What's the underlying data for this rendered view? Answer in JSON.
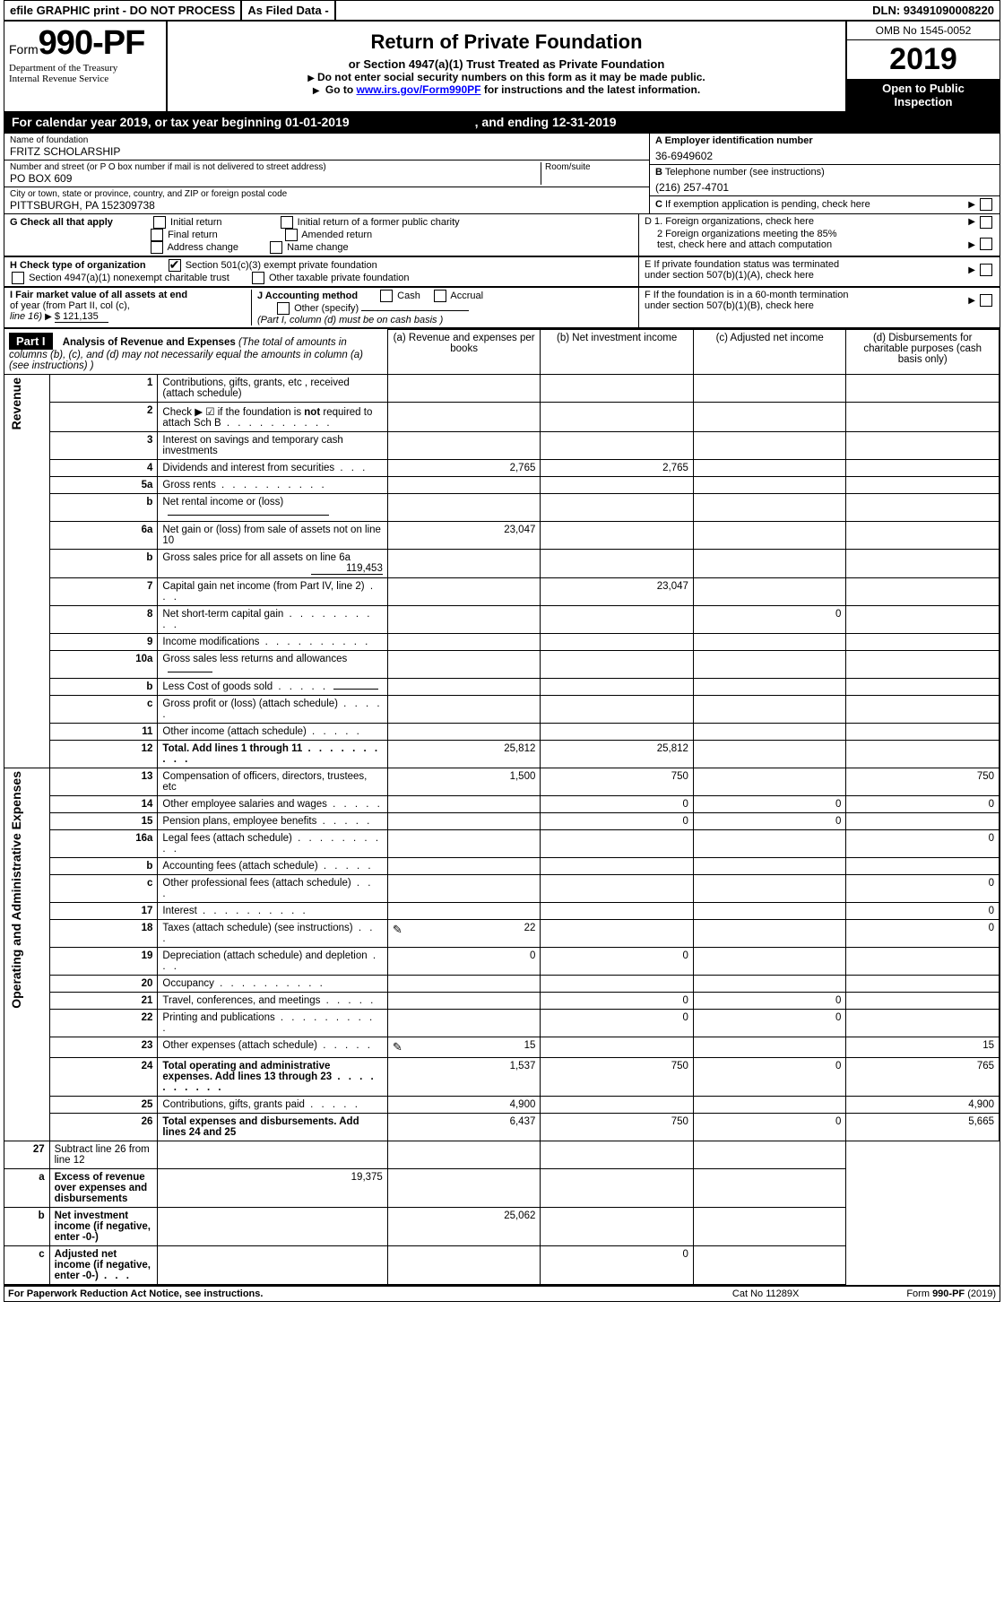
{
  "topbar": {
    "efile": "efile GRAPHIC print - DO NOT PROCESS",
    "asfiled": "As Filed Data -",
    "dln": "DLN: 93491090008220"
  },
  "header": {
    "formword": "Form",
    "formnum": "990-PF",
    "dept": "Department of the Treasury",
    "irs": "Internal Revenue Service",
    "title": "Return of Private Foundation",
    "subtitle": "or Section 4947(a)(1) Trust Treated as Private Foundation",
    "note1": "Do not enter social security numbers on this form as it may be made public.",
    "note2_a": "Go to ",
    "note2_link": "www.irs.gov/Form990PF",
    "note2_b": " for instructions and the latest information.",
    "omb": "OMB No 1545-0052",
    "year": "2019",
    "open": "Open to Public Inspection"
  },
  "calendar": {
    "a": "For calendar year 2019, or tax year beginning 01-01-2019",
    "b": ", and ending 12-31-2019"
  },
  "info": {
    "name_lbl": "Name of foundation",
    "name_val": "FRITZ SCHOLARSHIP",
    "addr_lbl": "Number and street (or P O  box number if mail is not delivered to street address)",
    "room_lbl": "Room/suite",
    "addr_val": "PO BOX 609",
    "city_lbl": "City or town, state or province, country, and ZIP or foreign postal code",
    "city_val": "PITTSBURGH, PA  152309738",
    "a_lbl": "A Employer identification number",
    "a_val": "36-6949602",
    "b_lbl": "B Telephone number (see instructions)",
    "b_val": "(216) 257-4701",
    "c_lbl": "C If exemption application is pending, check here"
  },
  "g": {
    "lbl": "G Check all that apply",
    "o1": "Initial return",
    "o2": "Initial return of a former public charity",
    "o3": "Final return",
    "o4": "Amended return",
    "o5": "Address change",
    "o6": "Name change"
  },
  "d": {
    "l1": "D 1. Foreign organizations, check here",
    "l2a": "2 Foreign organizations meeting the 85%",
    "l2b": "test, check here and attach computation",
    "e1": "E  If private foundation status was terminated",
    "e2": "under section 507(b)(1)(A), check here",
    "f1": "F  If the foundation is in a 60-month termination",
    "f2": "under section 507(b)(1)(B), check here"
  },
  "h": {
    "lbl": "H Check type of organization",
    "o1": "Section 501(c)(3) exempt private foundation",
    "o2": "Section 4947(a)(1) nonexempt charitable trust",
    "o3": "Other taxable private foundation"
  },
  "i": {
    "lbl1": "I Fair market value of all assets at end",
    "lbl2": "of year (from Part II, col  (c),",
    "lbl3": "line 16)",
    "val": "$  121,135"
  },
  "j": {
    "lbl": "J Accounting method",
    "o1": "Cash",
    "o2": "Accrual",
    "o3": "Other (specify)",
    "note": "(Part I, column (d) must be on cash basis )"
  },
  "part1": {
    "tag": "Part I",
    "title": "Analysis of Revenue and Expenses",
    "titlenote": " (The total of amounts in columns (b), (c), and (d) may not necessarily equal the amounts in column (a) (see instructions) )",
    "col_a": "(a)  Revenue and expenses per books",
    "col_b": "(b)  Net investment income",
    "col_c": "(c)  Adjusted net income",
    "col_d": "(d)  Disbursements for charitable purposes (cash basis only)"
  },
  "side_rev": "Revenue",
  "side_exp": "Operating and Administrative Expenses",
  "rows": [
    {
      "n": "1",
      "d": "Contributions, gifts, grants, etc , received (attach schedule)",
      "a": "",
      "b": "",
      "c": "",
      "dd": ""
    },
    {
      "n": "2",
      "d": "Check ▶ ☑ if the foundation is not required to attach Sch B",
      "a": "",
      "b": "",
      "c": "",
      "dd": "",
      "dots": true,
      "bold_not": true
    },
    {
      "n": "3",
      "d": "Interest on savings and temporary cash investments",
      "a": "",
      "b": "",
      "c": "",
      "dd": ""
    },
    {
      "n": "4",
      "d": "Dividends and interest from securities",
      "a": "2,765",
      "b": "2,765",
      "c": "",
      "dd": "",
      "dots3": true
    },
    {
      "n": "5a",
      "d": "Gross rents",
      "a": "",
      "b": "",
      "c": "",
      "dd": "",
      "dots": true
    },
    {
      "n": "b",
      "d": "Net rental income or (loss)",
      "a": "",
      "b": "",
      "c": "",
      "dd": "",
      "uline": true
    },
    {
      "n": "6a",
      "d": "Net gain or (loss) from sale of assets not on line 10",
      "a": "23,047",
      "b": "",
      "c": "",
      "dd": ""
    },
    {
      "n": "b",
      "d": "Gross sales price for all assets on line 6a",
      "a": "",
      "b": "",
      "c": "",
      "dd": "",
      "inline_val": "119,453"
    },
    {
      "n": "7",
      "d": "Capital gain net income (from Part IV, line 2)",
      "a": "",
      "b": "23,047",
      "c": "",
      "dd": "",
      "dots3": true
    },
    {
      "n": "8",
      "d": "Net short-term capital gain",
      "a": "",
      "b": "",
      "c": "0",
      "dd": "",
      "dots": true
    },
    {
      "n": "9",
      "d": "Income modifications",
      "a": "",
      "b": "",
      "c": "",
      "dd": "",
      "dots": true
    },
    {
      "n": "10a",
      "d": "Gross sales less returns and allowances",
      "a": "",
      "b": "",
      "c": "",
      "dd": "",
      "uline_sm": true
    },
    {
      "n": "b",
      "d": "Less  Cost of goods sold",
      "a": "",
      "b": "",
      "c": "",
      "dd": "",
      "dots5": true,
      "uline_sm": true
    },
    {
      "n": "c",
      "d": "Gross profit or (loss) (attach schedule)",
      "a": "",
      "b": "",
      "c": "",
      "dd": "",
      "dots5": true
    },
    {
      "n": "11",
      "d": "Other income (attach schedule)",
      "a": "",
      "b": "",
      "c": "",
      "dd": "",
      "dots5": true
    },
    {
      "n": "12",
      "d": "Total. Add lines 1 through 11",
      "a": "25,812",
      "b": "25,812",
      "c": "",
      "dd": "",
      "bold": true,
      "dots": true
    }
  ],
  "exprows": [
    {
      "n": "13",
      "d": "Compensation of officers, directors, trustees, etc",
      "a": "1,500",
      "b": "750",
      "c": "",
      "dd": "750"
    },
    {
      "n": "14",
      "d": "Other employee salaries and wages",
      "a": "",
      "b": "0",
      "c": "0",
      "dd": "0",
      "dots5": true
    },
    {
      "n": "15",
      "d": "Pension plans, employee benefits",
      "a": "",
      "b": "0",
      "c": "0",
      "dd": "",
      "dots5": true
    },
    {
      "n": "16a",
      "d": "Legal fees (attach schedule)",
      "a": "",
      "b": "",
      "c": "",
      "dd": "0",
      "dots": true
    },
    {
      "n": "b",
      "d": "Accounting fees (attach schedule)",
      "a": "",
      "b": "",
      "c": "",
      "dd": "",
      "dots5": true
    },
    {
      "n": "c",
      "d": "Other professional fees (attach schedule)",
      "a": "",
      "b": "",
      "c": "",
      "dd": "0",
      "dots3": true
    },
    {
      "n": "17",
      "d": "Interest",
      "a": "",
      "b": "",
      "c": "",
      "dd": "0",
      "dots": true
    },
    {
      "n": "18",
      "d": "Taxes (attach schedule) (see instructions)",
      "a": "22",
      "b": "",
      "c": "",
      "dd": "0",
      "dots3": true,
      "icon": true
    },
    {
      "n": "19",
      "d": "Depreciation (attach schedule) and depletion",
      "a": "0",
      "b": "0",
      "c": "",
      "dd": "",
      "dots3": true
    },
    {
      "n": "20",
      "d": "Occupancy",
      "a": "",
      "b": "",
      "c": "",
      "dd": "",
      "dots": true
    },
    {
      "n": "21",
      "d": "Travel, conferences, and meetings",
      "a": "",
      "b": "0",
      "c": "0",
      "dd": "",
      "dots5": true
    },
    {
      "n": "22",
      "d": "Printing and publications",
      "a": "",
      "b": "0",
      "c": "0",
      "dd": "",
      "dots": true
    },
    {
      "n": "23",
      "d": "Other expenses (attach schedule)",
      "a": "15",
      "b": "",
      "c": "",
      "dd": "15",
      "dots5": true,
      "icon": true
    },
    {
      "n": "24",
      "d": "Total operating and administrative expenses. Add lines 13 through 23",
      "a": "1,537",
      "b": "750",
      "c": "0",
      "dd": "765",
      "bold": true,
      "dots": true
    },
    {
      "n": "25",
      "d": "Contributions, gifts, grants paid",
      "a": "4,900",
      "b": "",
      "c": "",
      "dd": "4,900",
      "dots5": true
    },
    {
      "n": "26",
      "d": "Total expenses and disbursements. Add lines 24 and 25",
      "a": "6,437",
      "b": "750",
      "c": "0",
      "dd": "5,665",
      "bold": true
    }
  ],
  "sumrows": [
    {
      "n": "27",
      "d": "Subtract line 26 from line 12",
      "a": "",
      "b": "",
      "c": "",
      "dd": ""
    },
    {
      "n": "a",
      "d": "Excess of revenue over expenses and disbursements",
      "a": "19,375",
      "b": "",
      "c": "",
      "dd": "",
      "bold": true
    },
    {
      "n": "b",
      "d": "Net investment income (if negative, enter -0-)",
      "a": "",
      "b": "25,062",
      "c": "",
      "dd": "",
      "bold": true
    },
    {
      "n": "c",
      "d": "Adjusted net income (if negative, enter -0-)",
      "a": "",
      "b": "",
      "c": "0",
      "dd": "",
      "bold": true,
      "dots3": true
    }
  ],
  "footer": {
    "left": "For Paperwork Reduction Act Notice, see instructions.",
    "mid": "Cat  No  11289X",
    "right": "Form 990-PF (2019)"
  }
}
